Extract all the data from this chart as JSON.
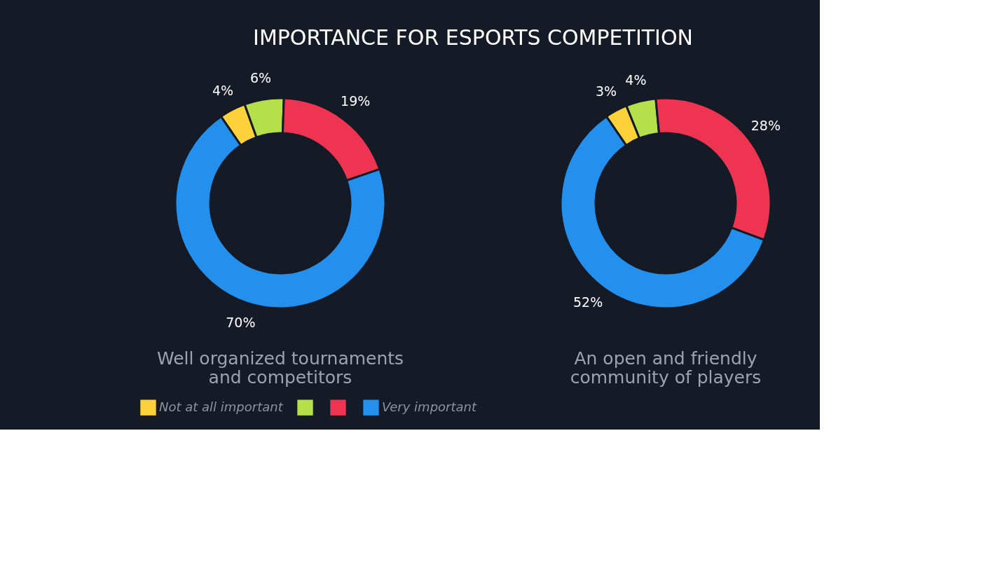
{
  "chart_data": [
    {
      "type": "donut",
      "title": "Well organized tournaments and competitors",
      "annotations": [
        "IMPORTANCE FOR ESPORTS COMPETITION"
      ],
      "categories": [
        "Not at all important",
        null,
        null,
        "Very important"
      ],
      "values": [
        4,
        6,
        19,
        70
      ],
      "colors": [
        "#fdd13a",
        "#b5e04a",
        "#ee3451",
        "#2290ec"
      ],
      "value_labels": [
        "4%",
        "6%",
        "19%",
        "70%"
      ],
      "legend": "bottom"
    },
    {
      "type": "donut",
      "title": "An open and friendly community of players",
      "values": [
        3,
        4,
        28,
        52
      ],
      "colors": [
        "#fdd13a",
        "#b5e04a",
        "#ee3451",
        "#2290ec"
      ],
      "value_labels": [
        "3%",
        "4%",
        "28%",
        "52%"
      ]
    }
  ]
}
